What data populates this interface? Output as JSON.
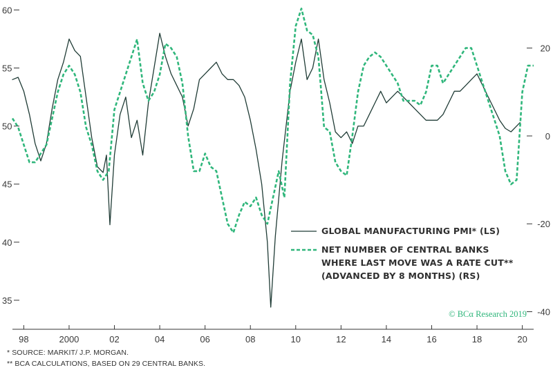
{
  "chart_data": {
    "type": "line",
    "xlim": [
      1997.5,
      2020.5
    ],
    "x_ticks": [
      {
        "x": 1998,
        "label": "98"
      },
      {
        "x": 2000,
        "label": "2000"
      },
      {
        "x": 2002,
        "label": "02"
      },
      {
        "x": 2004,
        "label": "04"
      },
      {
        "x": 2006,
        "label": "06"
      },
      {
        "x": 2008,
        "label": "08"
      },
      {
        "x": 2010,
        "label": "10"
      },
      {
        "x": 2012,
        "label": "12"
      },
      {
        "x": 2014,
        "label": "14"
      },
      {
        "x": 2016,
        "label": "16"
      },
      {
        "x": 2018,
        "label": "18"
      },
      {
        "x": 2020,
        "label": "20"
      }
    ],
    "left_axis": {
      "ylim": [
        32.5,
        60.5
      ],
      "ticks": [
        35,
        40,
        45,
        50,
        55,
        60
      ],
      "tick_labels": [
        "35",
        "40",
        "45",
        "50",
        "55",
        "60"
      ]
    },
    "right_axis": {
      "ylim": [
        -44,
        30
      ],
      "ticks": [
        -40,
        -20,
        0,
        20
      ],
      "tick_labels": [
        "-40",
        "-20",
        "0",
        "20"
      ]
    },
    "series": [
      {
        "name": "GLOBAL MANUFACTURING PMI* (LS)",
        "axis": "left",
        "style": "solid",
        "color": "#1f3b35",
        "points": [
          [
            1997.5,
            54
          ],
          [
            1997.75,
            54.2
          ],
          [
            1998.0,
            53
          ],
          [
            1998.25,
            51
          ],
          [
            1998.5,
            48.5
          ],
          [
            1998.75,
            47
          ],
          [
            1999.0,
            48.5
          ],
          [
            1999.25,
            51.5
          ],
          [
            1999.5,
            54
          ],
          [
            1999.75,
            55.5
          ],
          [
            2000.0,
            57.5
          ],
          [
            2000.25,
            56.5
          ],
          [
            2000.5,
            56
          ],
          [
            2000.75,
            52.5
          ],
          [
            2001.0,
            49
          ],
          [
            2001.25,
            46.5
          ],
          [
            2001.5,
            46
          ],
          [
            2001.65,
            47.5
          ],
          [
            2001.8,
            41.5
          ],
          [
            2002.0,
            47.5
          ],
          [
            2002.25,
            51
          ],
          [
            2002.5,
            52.5
          ],
          [
            2002.75,
            49
          ],
          [
            2003.0,
            50.5
          ],
          [
            2003.25,
            47.5
          ],
          [
            2003.5,
            52
          ],
          [
            2003.75,
            55
          ],
          [
            2004.0,
            58
          ],
          [
            2004.25,
            56
          ],
          [
            2004.5,
            54.5
          ],
          [
            2004.75,
            53.5
          ],
          [
            2005.0,
            52.5
          ],
          [
            2005.25,
            50
          ],
          [
            2005.5,
            51.5
          ],
          [
            2005.75,
            54
          ],
          [
            2006.0,
            54.5
          ],
          [
            2006.25,
            55
          ],
          [
            2006.5,
            55.5
          ],
          [
            2006.75,
            54.5
          ],
          [
            2007.0,
            54
          ],
          [
            2007.25,
            54
          ],
          [
            2007.5,
            53.5
          ],
          [
            2007.75,
            52.5
          ],
          [
            2008.0,
            50.5
          ],
          [
            2008.25,
            48
          ],
          [
            2008.5,
            45
          ],
          [
            2008.75,
            40
          ],
          [
            2008.9,
            34.4
          ],
          [
            2009.1,
            40.5
          ],
          [
            2009.4,
            47
          ],
          [
            2009.75,
            53
          ],
          [
            2010.0,
            55.5
          ],
          [
            2010.25,
            57.5
          ],
          [
            2010.5,
            54
          ],
          [
            2010.75,
            55
          ],
          [
            2011.0,
            57.5
          ],
          [
            2011.25,
            54
          ],
          [
            2011.5,
            52
          ],
          [
            2011.75,
            49.5
          ],
          [
            2012.0,
            49
          ],
          [
            2012.25,
            49.5
          ],
          [
            2012.5,
            48.5
          ],
          [
            2012.75,
            50
          ],
          [
            2013.0,
            50
          ],
          [
            2013.25,
            51
          ],
          [
            2013.5,
            52
          ],
          [
            2013.75,
            53
          ],
          [
            2014.0,
            52
          ],
          [
            2014.25,
            52.5
          ],
          [
            2014.5,
            53
          ],
          [
            2014.75,
            52.5
          ],
          [
            2015.0,
            52
          ],
          [
            2015.25,
            51.5
          ],
          [
            2015.5,
            51
          ],
          [
            2015.75,
            50.5
          ],
          [
            2016.0,
            50.5
          ],
          [
            2016.25,
            50.5
          ],
          [
            2016.5,
            51
          ],
          [
            2016.75,
            52
          ],
          [
            2017.0,
            53
          ],
          [
            2017.25,
            53
          ],
          [
            2017.5,
            53.5
          ],
          [
            2017.75,
            54
          ],
          [
            2018.0,
            54.5
          ],
          [
            2018.25,
            53.5
          ],
          [
            2018.5,
            52.5
          ],
          [
            2018.75,
            51.5
          ],
          [
            2019.0,
            50.5
          ],
          [
            2019.25,
            49.8
          ],
          [
            2019.5,
            49.5
          ],
          [
            2019.75,
            50
          ],
          [
            2019.9,
            50.3
          ]
        ]
      },
      {
        "name": "NET NUMBER OF CENTRAL BANKS WHERE LAST MOVE WAS A RATE CUT** (ADVANCED BY 8 MONTHS) (RS)",
        "axis": "right",
        "style": "dashed",
        "color": "#2fb67b",
        "points": [
          [
            1997.5,
            4
          ],
          [
            1997.75,
            2
          ],
          [
            1998.0,
            -2
          ],
          [
            1998.25,
            -6
          ],
          [
            1998.5,
            -6
          ],
          [
            1998.75,
            -4
          ],
          [
            1999.0,
            -2
          ],
          [
            1999.25,
            4
          ],
          [
            1999.5,
            10
          ],
          [
            1999.75,
            14
          ],
          [
            2000.0,
            16
          ],
          [
            2000.25,
            14
          ],
          [
            2000.5,
            10
          ],
          [
            2000.75,
            2
          ],
          [
            2001.0,
            -2
          ],
          [
            2001.25,
            -8
          ],
          [
            2001.5,
            -10
          ],
          [
            2001.75,
            -8
          ],
          [
            2002.0,
            6
          ],
          [
            2002.25,
            10
          ],
          [
            2002.5,
            14
          ],
          [
            2002.75,
            18
          ],
          [
            2003.0,
            22
          ],
          [
            2003.25,
            12
          ],
          [
            2003.5,
            8
          ],
          [
            2003.75,
            10
          ],
          [
            2004.0,
            14
          ],
          [
            2004.25,
            21
          ],
          [
            2004.5,
            20
          ],
          [
            2004.75,
            18
          ],
          [
            2005.0,
            12
          ],
          [
            2005.25,
            0
          ],
          [
            2005.5,
            -8
          ],
          [
            2005.75,
            -8
          ],
          [
            2006.0,
            -4
          ],
          [
            2006.25,
            -7
          ],
          [
            2006.5,
            -8
          ],
          [
            2006.75,
            -14
          ],
          [
            2007.0,
            -20
          ],
          [
            2007.25,
            -22
          ],
          [
            2007.5,
            -18
          ],
          [
            2007.75,
            -15
          ],
          [
            2008.0,
            -16
          ],
          [
            2008.25,
            -14
          ],
          [
            2008.5,
            -18
          ],
          [
            2008.75,
            -20
          ],
          [
            2009.0,
            -14
          ],
          [
            2009.25,
            -8
          ],
          [
            2009.5,
            -14
          ],
          [
            2009.75,
            12
          ],
          [
            2010.0,
            25
          ],
          [
            2010.25,
            29
          ],
          [
            2010.5,
            24
          ],
          [
            2010.75,
            23
          ],
          [
            2011.0,
            18
          ],
          [
            2011.25,
            2
          ],
          [
            2011.5,
            1
          ],
          [
            2011.75,
            -6
          ],
          [
            2012.0,
            -8
          ],
          [
            2012.25,
            -9
          ],
          [
            2012.5,
            0
          ],
          [
            2012.75,
            10
          ],
          [
            2013.0,
            16
          ],
          [
            2013.25,
            18
          ],
          [
            2013.5,
            19
          ],
          [
            2013.75,
            18
          ],
          [
            2014.0,
            16
          ],
          [
            2014.25,
            14
          ],
          [
            2014.5,
            12
          ],
          [
            2014.75,
            8
          ],
          [
            2015.0,
            8
          ],
          [
            2015.25,
            8
          ],
          [
            2015.5,
            7
          ],
          [
            2015.75,
            10
          ],
          [
            2016.0,
            16
          ],
          [
            2016.25,
            16
          ],
          [
            2016.5,
            12
          ],
          [
            2016.75,
            14
          ],
          [
            2017.0,
            16
          ],
          [
            2017.25,
            18
          ],
          [
            2017.5,
            20
          ],
          [
            2017.75,
            20
          ],
          [
            2018.0,
            16
          ],
          [
            2018.25,
            12
          ],
          [
            2018.5,
            8
          ],
          [
            2018.75,
            4
          ],
          [
            2019.0,
            0
          ],
          [
            2019.25,
            -8
          ],
          [
            2019.5,
            -11
          ],
          [
            2019.75,
            -10
          ],
          [
            2020.0,
            10
          ],
          [
            2020.25,
            16
          ],
          [
            2020.5,
            16
          ]
        ]
      }
    ],
    "legend_placement": "bottom-right",
    "grid": false
  },
  "legend": {
    "pmi_label": "GLOBAL MANUFACTURING PMI* (LS)",
    "banks_label_line1": "NET NUMBER OF CENTRAL BANKS",
    "banks_label_line2": "WHERE LAST MOVE WAS A RATE CUT**",
    "banks_label_line3": "(ADVANCED BY 8 MONTHS) (RS)"
  },
  "watermark": "© BCα Research 2019",
  "footnotes": {
    "source": "*  SOURCE: MARKIT/ J.P. MORGAN.",
    "calc": "** BCA CALCULATIONS, BASED ON 29 CENTRAL BANKS."
  },
  "colors": {
    "pmi": "#1f3b35",
    "banks": "#2fb67b",
    "axis": "#333333"
  }
}
